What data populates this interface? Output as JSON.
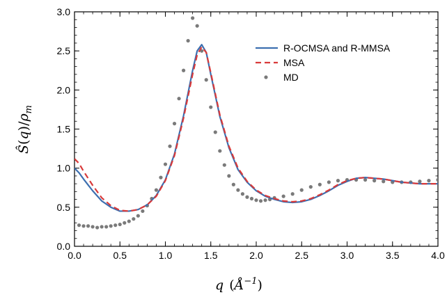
{
  "chart_data": {
    "type": "line",
    "xlabel": "q (Å⁻¹)",
    "ylabel": "Ŝ(q)/ρm",
    "xlim": [
      0.0,
      4.0
    ],
    "ylim": [
      0.0,
      3.0
    ],
    "x_ticks": [
      "0.0",
      "0.5",
      "1.0",
      "1.5",
      "2.0",
      "2.5",
      "3.0",
      "3.5",
      "4.0"
    ],
    "y_ticks": [
      "0.0",
      "0.5",
      "1.0",
      "1.5",
      "2.0",
      "2.5",
      "3.0"
    ],
    "legend_position": "top-right",
    "grid": false,
    "series": [
      {
        "name": "R-OCMSA and R-MMSA",
        "style": "solid",
        "color": "#3d6fb0",
        "points": [
          [
            0.0,
            1.0
          ],
          [
            0.05,
            0.94
          ],
          [
            0.1,
            0.86
          ],
          [
            0.2,
            0.71
          ],
          [
            0.3,
            0.58
          ],
          [
            0.4,
            0.5
          ],
          [
            0.5,
            0.45
          ],
          [
            0.6,
            0.45
          ],
          [
            0.7,
            0.47
          ],
          [
            0.8,
            0.53
          ],
          [
            0.9,
            0.65
          ],
          [
            1.0,
            0.85
          ],
          [
            1.1,
            1.18
          ],
          [
            1.2,
            1.67
          ],
          [
            1.3,
            2.25
          ],
          [
            1.35,
            2.5
          ],
          [
            1.4,
            2.58
          ],
          [
            1.45,
            2.48
          ],
          [
            1.5,
            2.2
          ],
          [
            1.6,
            1.66
          ],
          [
            1.7,
            1.26
          ],
          [
            1.8,
            0.98
          ],
          [
            1.9,
            0.82
          ],
          [
            2.0,
            0.71
          ],
          [
            2.1,
            0.64
          ],
          [
            2.2,
            0.6
          ],
          [
            2.3,
            0.57
          ],
          [
            2.4,
            0.56
          ],
          [
            2.5,
            0.57
          ],
          [
            2.6,
            0.6
          ],
          [
            2.7,
            0.65
          ],
          [
            2.8,
            0.71
          ],
          [
            2.9,
            0.78
          ],
          [
            3.0,
            0.83
          ],
          [
            3.1,
            0.87
          ],
          [
            3.2,
            0.88
          ],
          [
            3.3,
            0.87
          ],
          [
            3.4,
            0.86
          ],
          [
            3.5,
            0.84
          ],
          [
            3.6,
            0.82
          ],
          [
            3.7,
            0.81
          ],
          [
            3.8,
            0.8
          ],
          [
            3.9,
            0.8
          ],
          [
            4.0,
            0.8
          ]
        ]
      },
      {
        "name": "MSA",
        "style": "dashed",
        "color": "#d93a3a",
        "points": [
          [
            0.0,
            1.12
          ],
          [
            0.05,
            1.06
          ],
          [
            0.1,
            0.96
          ],
          [
            0.2,
            0.78
          ],
          [
            0.3,
            0.62
          ],
          [
            0.4,
            0.52
          ],
          [
            0.5,
            0.46
          ],
          [
            0.6,
            0.45
          ],
          [
            0.7,
            0.47
          ],
          [
            0.8,
            0.53
          ],
          [
            0.9,
            0.64
          ],
          [
            1.0,
            0.84
          ],
          [
            1.1,
            1.16
          ],
          [
            1.2,
            1.64
          ],
          [
            1.3,
            2.2
          ],
          [
            1.35,
            2.45
          ],
          [
            1.4,
            2.55
          ],
          [
            1.45,
            2.48
          ],
          [
            1.5,
            2.22
          ],
          [
            1.6,
            1.68
          ],
          [
            1.7,
            1.28
          ],
          [
            1.8,
            1.0
          ],
          [
            1.9,
            0.83
          ],
          [
            2.0,
            0.72
          ],
          [
            2.1,
            0.65
          ],
          [
            2.2,
            0.61
          ],
          [
            2.3,
            0.58
          ],
          [
            2.4,
            0.57
          ],
          [
            2.5,
            0.58
          ],
          [
            2.6,
            0.61
          ],
          [
            2.7,
            0.66
          ],
          [
            2.8,
            0.72
          ],
          [
            2.9,
            0.79
          ],
          [
            3.0,
            0.84
          ],
          [
            3.1,
            0.87
          ],
          [
            3.2,
            0.88
          ],
          [
            3.3,
            0.87
          ],
          [
            3.4,
            0.86
          ],
          [
            3.5,
            0.84
          ],
          [
            3.6,
            0.82
          ],
          [
            3.7,
            0.81
          ],
          [
            3.8,
            0.8
          ],
          [
            3.9,
            0.8
          ],
          [
            4.0,
            0.8
          ]
        ]
      },
      {
        "name": "MD",
        "style": "markers",
        "color": "#7a7a7a",
        "points": [
          [
            0.05,
            0.27
          ],
          [
            0.1,
            0.26
          ],
          [
            0.15,
            0.26
          ],
          [
            0.2,
            0.25
          ],
          [
            0.25,
            0.24
          ],
          [
            0.3,
            0.25
          ],
          [
            0.35,
            0.25
          ],
          [
            0.4,
            0.26
          ],
          [
            0.45,
            0.27
          ],
          [
            0.5,
            0.28
          ],
          [
            0.55,
            0.3
          ],
          [
            0.6,
            0.32
          ],
          [
            0.65,
            0.35
          ],
          [
            0.7,
            0.39
          ],
          [
            0.75,
            0.45
          ],
          [
            0.8,
            0.52
          ],
          [
            0.85,
            0.61
          ],
          [
            0.9,
            0.72
          ],
          [
            0.95,
            0.88
          ],
          [
            1.0,
            1.05
          ],
          [
            1.05,
            1.28
          ],
          [
            1.1,
            1.57
          ],
          [
            1.15,
            1.89
          ],
          [
            1.2,
            2.25
          ],
          [
            1.25,
            2.63
          ],
          [
            1.3,
            2.92
          ],
          [
            1.35,
            2.82
          ],
          [
            1.4,
            2.5
          ],
          [
            1.45,
            2.13
          ],
          [
            1.5,
            1.78
          ],
          [
            1.55,
            1.46
          ],
          [
            1.6,
            1.22
          ],
          [
            1.65,
            1.04
          ],
          [
            1.7,
            0.9
          ],
          [
            1.75,
            0.79
          ],
          [
            1.8,
            0.72
          ],
          [
            1.85,
            0.67
          ],
          [
            1.9,
            0.63
          ],
          [
            1.95,
            0.61
          ],
          [
            2.0,
            0.59
          ],
          [
            2.05,
            0.58
          ],
          [
            2.1,
            0.59
          ],
          [
            2.15,
            0.6
          ],
          [
            2.2,
            0.62
          ],
          [
            2.3,
            0.64
          ],
          [
            2.4,
            0.67
          ],
          [
            2.5,
            0.72
          ],
          [
            2.6,
            0.76
          ],
          [
            2.7,
            0.79
          ],
          [
            2.8,
            0.82
          ],
          [
            2.9,
            0.84
          ],
          [
            3.0,
            0.85
          ],
          [
            3.1,
            0.85
          ],
          [
            3.2,
            0.85
          ],
          [
            3.3,
            0.84
          ],
          [
            3.4,
            0.83
          ],
          [
            3.5,
            0.82
          ],
          [
            3.6,
            0.82
          ],
          [
            3.7,
            0.82
          ],
          [
            3.8,
            0.83
          ],
          [
            3.9,
            0.84
          ],
          [
            4.0,
            0.85
          ]
        ]
      }
    ]
  }
}
